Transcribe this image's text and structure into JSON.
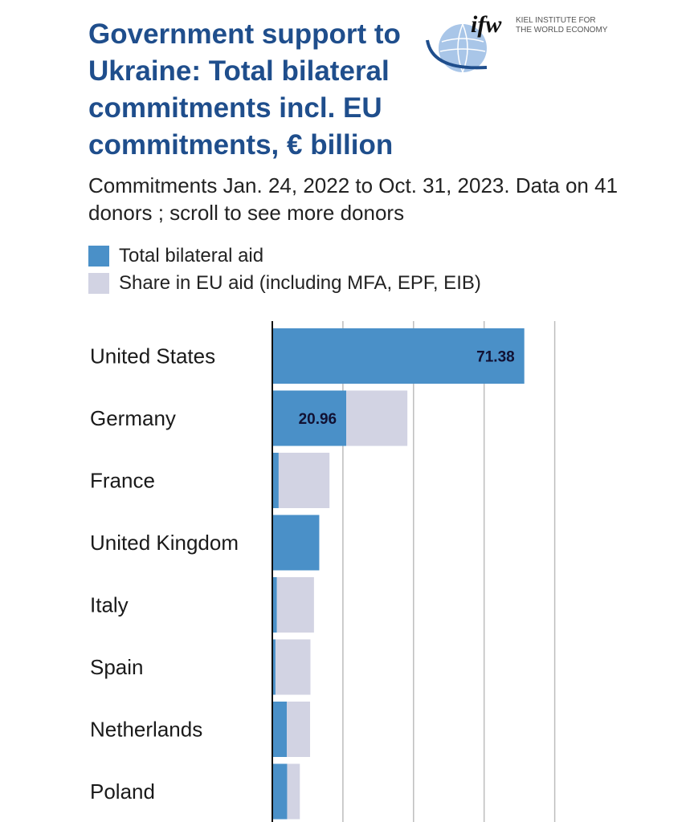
{
  "title": "Government support to Ukraine: Total bilateral commitments incl. EU commitments, € billion",
  "subtitle": "Commitments Jan. 24, 2022 to Oct. 31, 2023. Data on 41 donors ; scroll to see more donors",
  "logo": {
    "brand": "ifw",
    "line1": "KIEL INSTITUTE FOR",
    "line2": "THE WORLD ECONOMY"
  },
  "legend": [
    {
      "label": "Total bilateral aid",
      "color": "#4a90c8"
    },
    {
      "label": "Share in EU aid (including MFA, EPF, EIB)",
      "color": "#d2d3e3"
    }
  ],
  "colors": {
    "title": "#1f4e8c",
    "bilateral": "#4a90c8",
    "eu_share": "#d2d3e3",
    "grid": "#bdbdbd",
    "axis": "#111111",
    "label_text": "#111133"
  },
  "chart_data": {
    "type": "bar",
    "orientation": "horizontal",
    "stacked": true,
    "categories": [
      "United States",
      "Germany",
      "France",
      "United Kingdom",
      "Italy",
      "Spain",
      "Netherlands",
      "Poland"
    ],
    "series": [
      {
        "name": "Total bilateral aid",
        "values": [
          71.38,
          20.96,
          1.8,
          13.3,
          1.3,
          0.9,
          4.1,
          4.2
        ]
      },
      {
        "name": "Share in EU aid (including MFA, EPF, EIB)",
        "values": [
          0,
          17.3,
          14.4,
          0,
          10.5,
          9.9,
          6.6,
          3.6
        ]
      }
    ],
    "data_labels": [
      {
        "category": "United States",
        "text": "71.38"
      },
      {
        "category": "Germany",
        "text": "20.96"
      }
    ],
    "xlim": [
      0,
      80
    ],
    "gridlines": [
      0,
      20,
      40,
      60,
      80
    ],
    "grid": true,
    "legend_position": "top-left",
    "xlabel": "",
    "ylabel": ""
  }
}
